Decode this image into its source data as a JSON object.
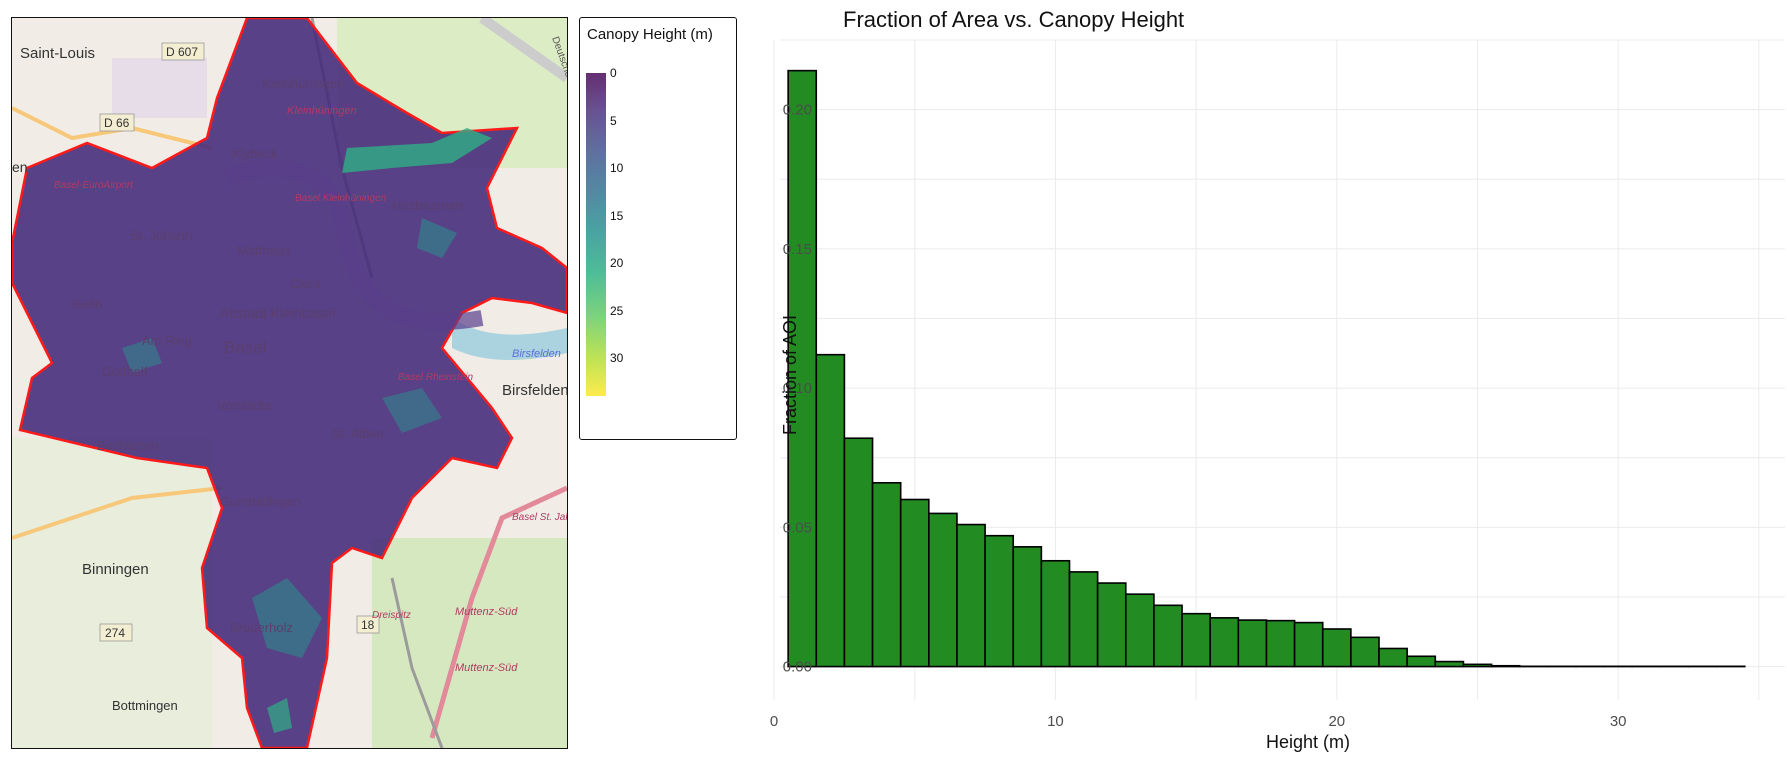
{
  "map": {
    "place_labels": [
      "Saint-Louis",
      "D 607",
      "D 66",
      "en",
      "Kleinhüningen",
      "Kleinhüningen",
      "Klybeck",
      "Basel-EuroAirport",
      "Basel Kleinhüningen",
      "St. Johann",
      "Matthäus",
      "Clara",
      "Hirzbrunnen",
      "Iselin",
      "Altstadt Kleinbasel",
      "Am Ring",
      "Basel",
      "Gotthelf",
      "Vorstädte",
      "Basel Rheinstein",
      "Birsfelden",
      "Birsfelden",
      "Bachletten",
      "St. Alban",
      "Gundeldingen",
      "Basel St. Jakob",
      "Binningen",
      "Bruderholz",
      "Muttenz-Süd",
      "Muttenz-Süd",
      "274",
      "18",
      "Bottmingen",
      "Deutsche",
      "Dreispitz"
    ]
  },
  "legend": {
    "title": "Canopy Height (m)",
    "ticks": [
      "0",
      "5",
      "10",
      "15",
      "20",
      "25",
      "30"
    ],
    "colors": [
      "#440154",
      "#472d7b",
      "#3b528b",
      "#2c728e",
      "#21918c",
      "#28ae80",
      "#5ec962",
      "#addc30",
      "#fde725"
    ]
  },
  "chart_data": {
    "type": "bar",
    "title": "Fraction of Area vs. Canopy Height",
    "xlabel": "Height (m)",
    "ylabel": "Fraction of AOI",
    "bar_color": "#228b22",
    "bar_edge": "#000000",
    "bin_width": 1,
    "x": [
      1,
      2,
      3,
      4,
      5,
      6,
      7,
      8,
      9,
      10,
      11,
      12,
      13,
      14,
      15,
      16,
      17,
      18,
      19,
      20,
      21,
      22,
      23,
      24,
      25,
      26,
      27,
      28,
      29,
      30,
      31,
      32,
      33,
      34
    ],
    "values": [
      0.214,
      0.112,
      0.082,
      0.066,
      0.06,
      0.055,
      0.051,
      0.047,
      0.043,
      0.038,
      0.034,
      0.03,
      0.026,
      0.022,
      0.019,
      0.0175,
      0.0167,
      0.0165,
      0.0158,
      0.0135,
      0.0105,
      0.0065,
      0.0037,
      0.0018,
      0.0008,
      0.0003,
      0.0001,
      0.0001,
      0.0001,
      0.0001,
      0.0001,
      0.0001,
      0.0001,
      0.0001
    ],
    "xlim": [
      -0.5,
      36
    ],
    "ylim": [
      -0.012,
      0.225
    ],
    "xticks": [
      0,
      10,
      20,
      30
    ],
    "xtick_labels": [
      "0",
      "10",
      "20",
      "30"
    ],
    "yticks": [
      0,
      0.05,
      0.1,
      0.15,
      0.2
    ],
    "ytick_labels": [
      "0.00",
      "0.05",
      "0.10",
      "0.15",
      "0.20"
    ],
    "grid": true
  }
}
